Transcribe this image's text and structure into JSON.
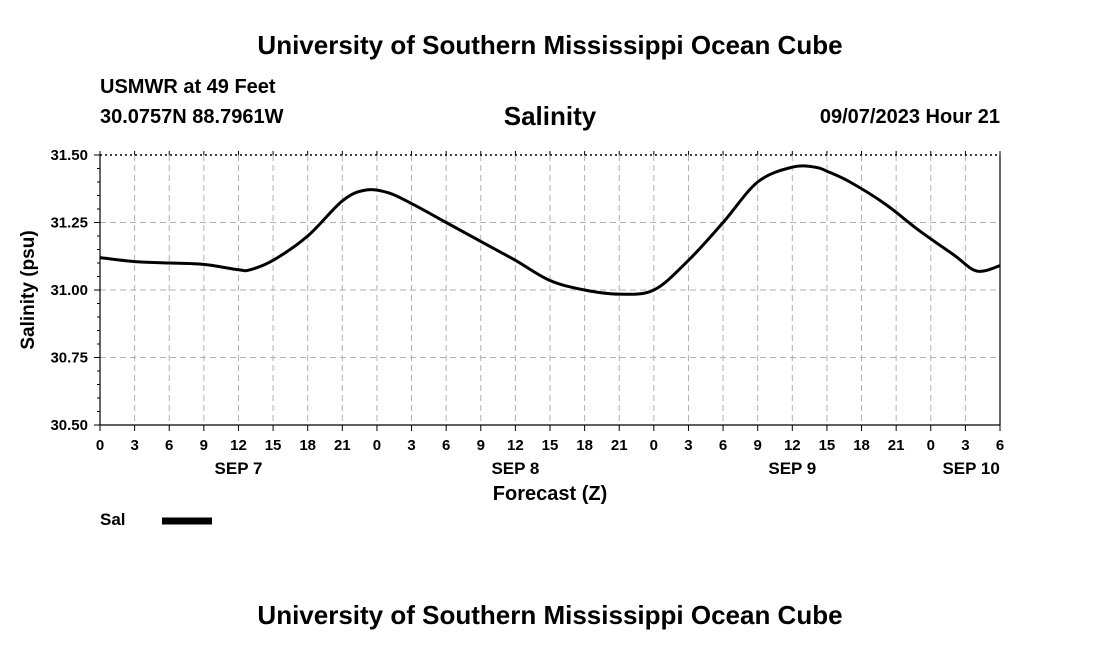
{
  "header": {
    "title": "University of Southern Mississippi Ocean Cube",
    "station": "USMWR at 49 Feet",
    "coords": "30.0757N  88.7961W",
    "datetime": "09/07/2023 Hour 21"
  },
  "footer": {
    "title": "University of Southern Mississippi Ocean Cube"
  },
  "chart_data": {
    "type": "line",
    "title": "Salinity",
    "xlabel": "Forecast (Z)",
    "ylabel": "Salinity (psu)",
    "x_unit": "hours since SEP 7 00Z",
    "xlim": [
      0,
      78
    ],
    "ylim": [
      30.5,
      31.5
    ],
    "grid": true,
    "y_ticks": [
      "30.50",
      "30.75",
      "31.00",
      "31.25",
      "31.50"
    ],
    "x_ticks": [
      "0",
      "3",
      "6",
      "9",
      "12",
      "15",
      "18",
      "21",
      "0",
      "3",
      "6",
      "9",
      "12",
      "15",
      "18",
      "21",
      "0",
      "3",
      "6",
      "9",
      "12",
      "15",
      "18",
      "21",
      "0",
      "3",
      "6"
    ],
    "day_labels": [
      {
        "label": "SEP 7",
        "hour": 12
      },
      {
        "label": "SEP 8",
        "hour": 36
      },
      {
        "label": "SEP 9",
        "hour": 60
      },
      {
        "label": "SEP 10",
        "hour": 75.5
      }
    ],
    "series": [
      {
        "name": "Sal",
        "color": "#000000",
        "x": [
          0,
          3,
          6,
          9,
          12,
          13,
          15,
          18,
          21,
          23,
          25,
          27,
          30,
          33,
          36,
          39,
          42,
          45,
          48,
          51,
          54,
          57,
          60,
          62,
          63,
          65,
          68,
          71,
          74,
          76,
          78
        ],
        "values": [
          31.12,
          31.105,
          31.1,
          31.095,
          31.075,
          31.075,
          31.11,
          31.2,
          31.33,
          31.37,
          31.36,
          31.32,
          31.25,
          31.18,
          31.11,
          31.035,
          31.0,
          30.985,
          31.0,
          31.11,
          31.25,
          31.4,
          31.455,
          31.455,
          31.44,
          31.4,
          31.32,
          31.22,
          31.13,
          31.07,
          31.09
        ]
      }
    ],
    "legend": [
      {
        "label": "Sal",
        "color": "#000000"
      }
    ],
    "legend_position": "bottom-left"
  }
}
